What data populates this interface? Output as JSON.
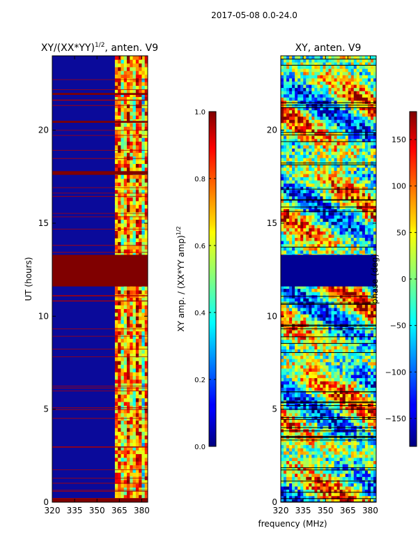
{
  "figure": {
    "suptitle": "2017-05-08 0.0-24.0",
    "xlabel": "frequency (MHz)"
  },
  "chart_data": [
    {
      "type": "heatmap",
      "title": "XY/(XX*YY)",
      "title_exp": "1/2",
      "title_suffix": ", anten. V9",
      "xlabel": "",
      "ylabel": "UT (hours)",
      "xlim": [
        320,
        384
      ],
      "ylim": [
        0,
        24
      ],
      "x_ticks": [
        320,
        335,
        350,
        365,
        380
      ],
      "y_ticks": [
        0,
        5,
        10,
        15,
        20
      ],
      "flagged_bands": [
        {
          "from": 0.0,
          "to": 0.2,
          "value": 1.0
        },
        {
          "from": 11.6,
          "to": 13.3,
          "value": 1.0
        },
        {
          "from": 17.6,
          "to": 17.8,
          "value": 1.0
        },
        {
          "from": 20.4,
          "to": 20.5,
          "value": 1.0
        },
        {
          "from": 21.9,
          "to": 22.0,
          "value": 1.0
        }
      ],
      "colorbar": {
        "label": "XY amp. / (XX*YY amp)",
        "label_exp": "1/2",
        "range": [
          0.0,
          1.0
        ],
        "ticks": [
          "0.0",
          "0.2",
          "0.4",
          "0.6",
          "0.8",
          "1.0"
        ],
        "colormap": "jet"
      }
    },
    {
      "type": "heatmap",
      "title": "XY, anten. V9",
      "xlabel": "frequency (MHz)",
      "ylabel": "",
      "xlim": [
        320,
        384
      ],
      "ylim": [
        0,
        24
      ],
      "x_ticks": [
        320,
        335,
        350,
        365,
        380
      ],
      "y_ticks": [
        0,
        5,
        10,
        15,
        20
      ],
      "flagged_bands": [
        {
          "from": 11.6,
          "to": 13.3,
          "value": -180
        }
      ],
      "colorbar": {
        "label": "phase (deg)",
        "range": [
          -180,
          180
        ],
        "ticks": [
          "−150",
          "−100",
          "−50",
          "0",
          "50",
          "100",
          "150"
        ],
        "tick_values": [
          -150,
          -100,
          -50,
          0,
          50,
          100,
          150
        ],
        "colormap": "jet"
      }
    }
  ]
}
